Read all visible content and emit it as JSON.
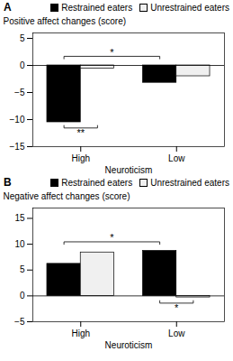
{
  "chart_data": [
    {
      "type": "bar",
      "title": "A",
      "xlabel": "Neuroticism",
      "ylabel": "Positive affect changes (score)",
      "categories": [
        "High",
        "Low"
      ],
      "series": [
        {
          "name": "Restrained eaters",
          "color": "#000000",
          "values": [
            -10.5,
            -3.2
          ]
        },
        {
          "name": "Unrestrained eaters",
          "color": "#f0f0f0",
          "values": [
            -0.6,
            -2.0
          ]
        }
      ],
      "ylim": [
        -15,
        6
      ],
      "yticks": [
        -15,
        -10,
        -5,
        0,
        5
      ],
      "grid": false,
      "legend": "upper right",
      "annotations": [
        {
          "text": "**",
          "category": "High",
          "series": [
            "Restrained eaters",
            "Unrestrained eaters"
          ]
        },
        {
          "text": "*",
          "series": "Restrained eaters",
          "categories": [
            "High",
            "Low"
          ]
        }
      ]
    },
    {
      "type": "bar",
      "title": "B",
      "xlabel": "Neuroticism",
      "ylabel": "Negative affect changes (score)",
      "categories": [
        "High",
        "Low"
      ],
      "series": [
        {
          "name": "Restrained eaters",
          "color": "#000000",
          "values": [
            6.2,
            8.7
          ]
        },
        {
          "name": "Unrestrained eaters",
          "color": "#f0f0f0",
          "values": [
            8.4,
            -0.3
          ]
        }
      ],
      "ylim": [
        -5,
        17
      ],
      "yticks": [
        -5,
        0,
        5,
        10,
        15
      ],
      "grid": false,
      "legend": "upper right",
      "annotations": [
        {
          "text": "*",
          "category": "Low",
          "series": [
            "Restrained eaters",
            "Unrestrained eaters"
          ]
        },
        {
          "text": "*",
          "series": "Restrained eaters",
          "categories": [
            "High",
            "Low"
          ]
        }
      ]
    }
  ]
}
